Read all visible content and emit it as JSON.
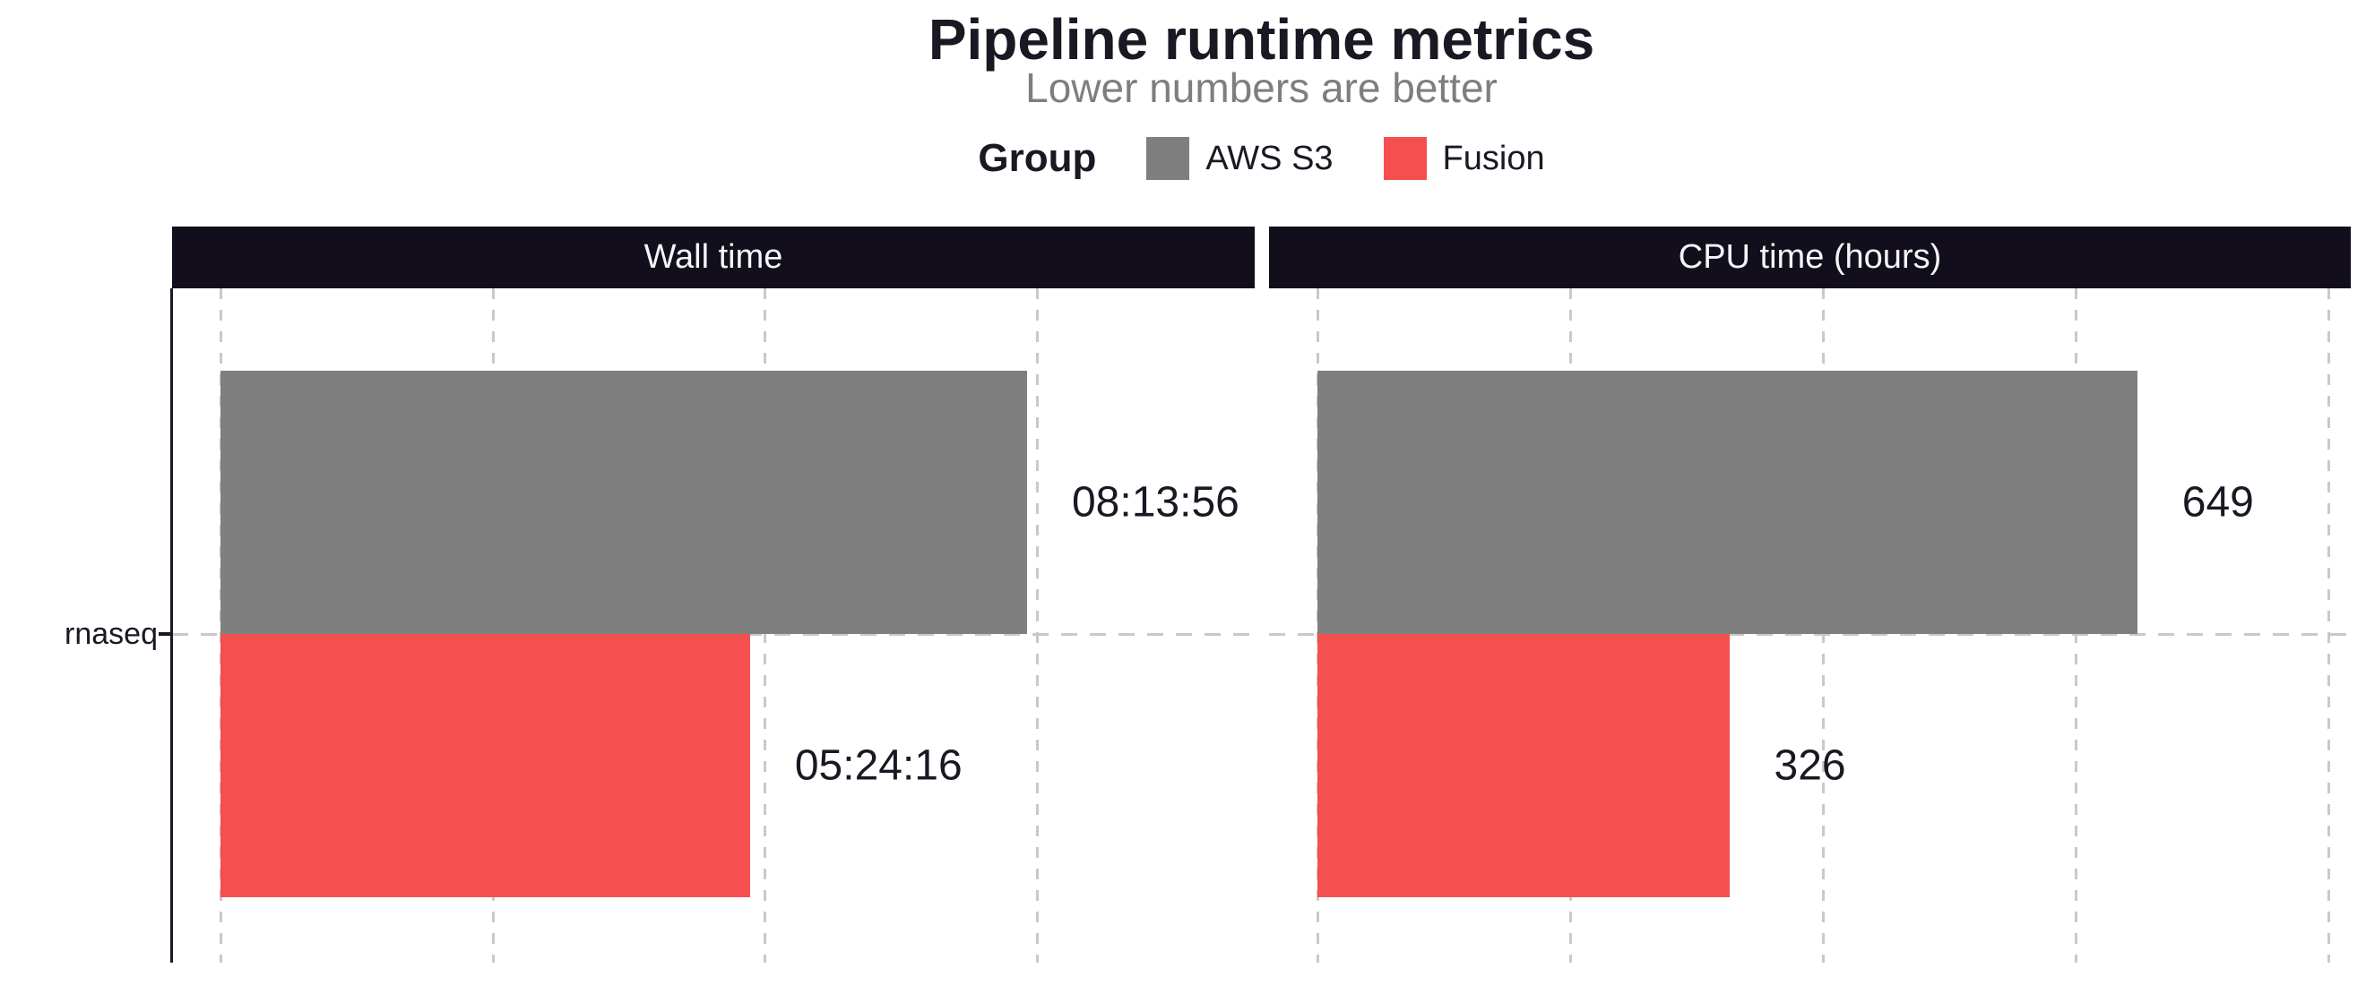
{
  "chart_data": {
    "type": "bar",
    "orientation": "horizontal",
    "title": "Pipeline runtime metrics",
    "subtitle": "Lower numbers are better",
    "category": "rnaseq",
    "grid": "dashed",
    "legend": {
      "position": "top",
      "title": "Group",
      "items": [
        {
          "label": "AWS S3",
          "color": "#7F7F7F"
        },
        {
          "label": "Fusion",
          "color": "#F4504F"
        }
      ]
    },
    "colors": {
      "ink": "#1B1723",
      "strip_background": "#120E1B",
      "strip_text": "#F5F4F6",
      "subtitle_gray": "#7E7E7E",
      "gridline_gray": "#C9C9C9"
    },
    "panels": [
      {
        "title": "Wall time",
        "unit": "seconds",
        "axis_min": 0,
        "axis_max": 38000,
        "gridline_values": [
          0,
          10000,
          20000,
          30000
        ],
        "series": [
          {
            "group": "AWS S3",
            "value": 29636,
            "label": "08:13:56",
            "color": "#7F7F7F"
          },
          {
            "group": "Fusion",
            "value": 19456,
            "label": "05:24:16",
            "color": "#F4504F"
          }
        ]
      },
      {
        "title": "CPU time (hours)",
        "unit": "hours",
        "axis_min": 0,
        "axis_max": 818,
        "gridline_values": [
          0,
          200,
          400,
          600,
          800
        ],
        "series": [
          {
            "group": "AWS S3",
            "value": 649,
            "label": "649",
            "color": "#7F7F7F"
          },
          {
            "group": "Fusion",
            "value": 326,
            "label": "326",
            "color": "#F4504F"
          }
        ]
      }
    ]
  }
}
